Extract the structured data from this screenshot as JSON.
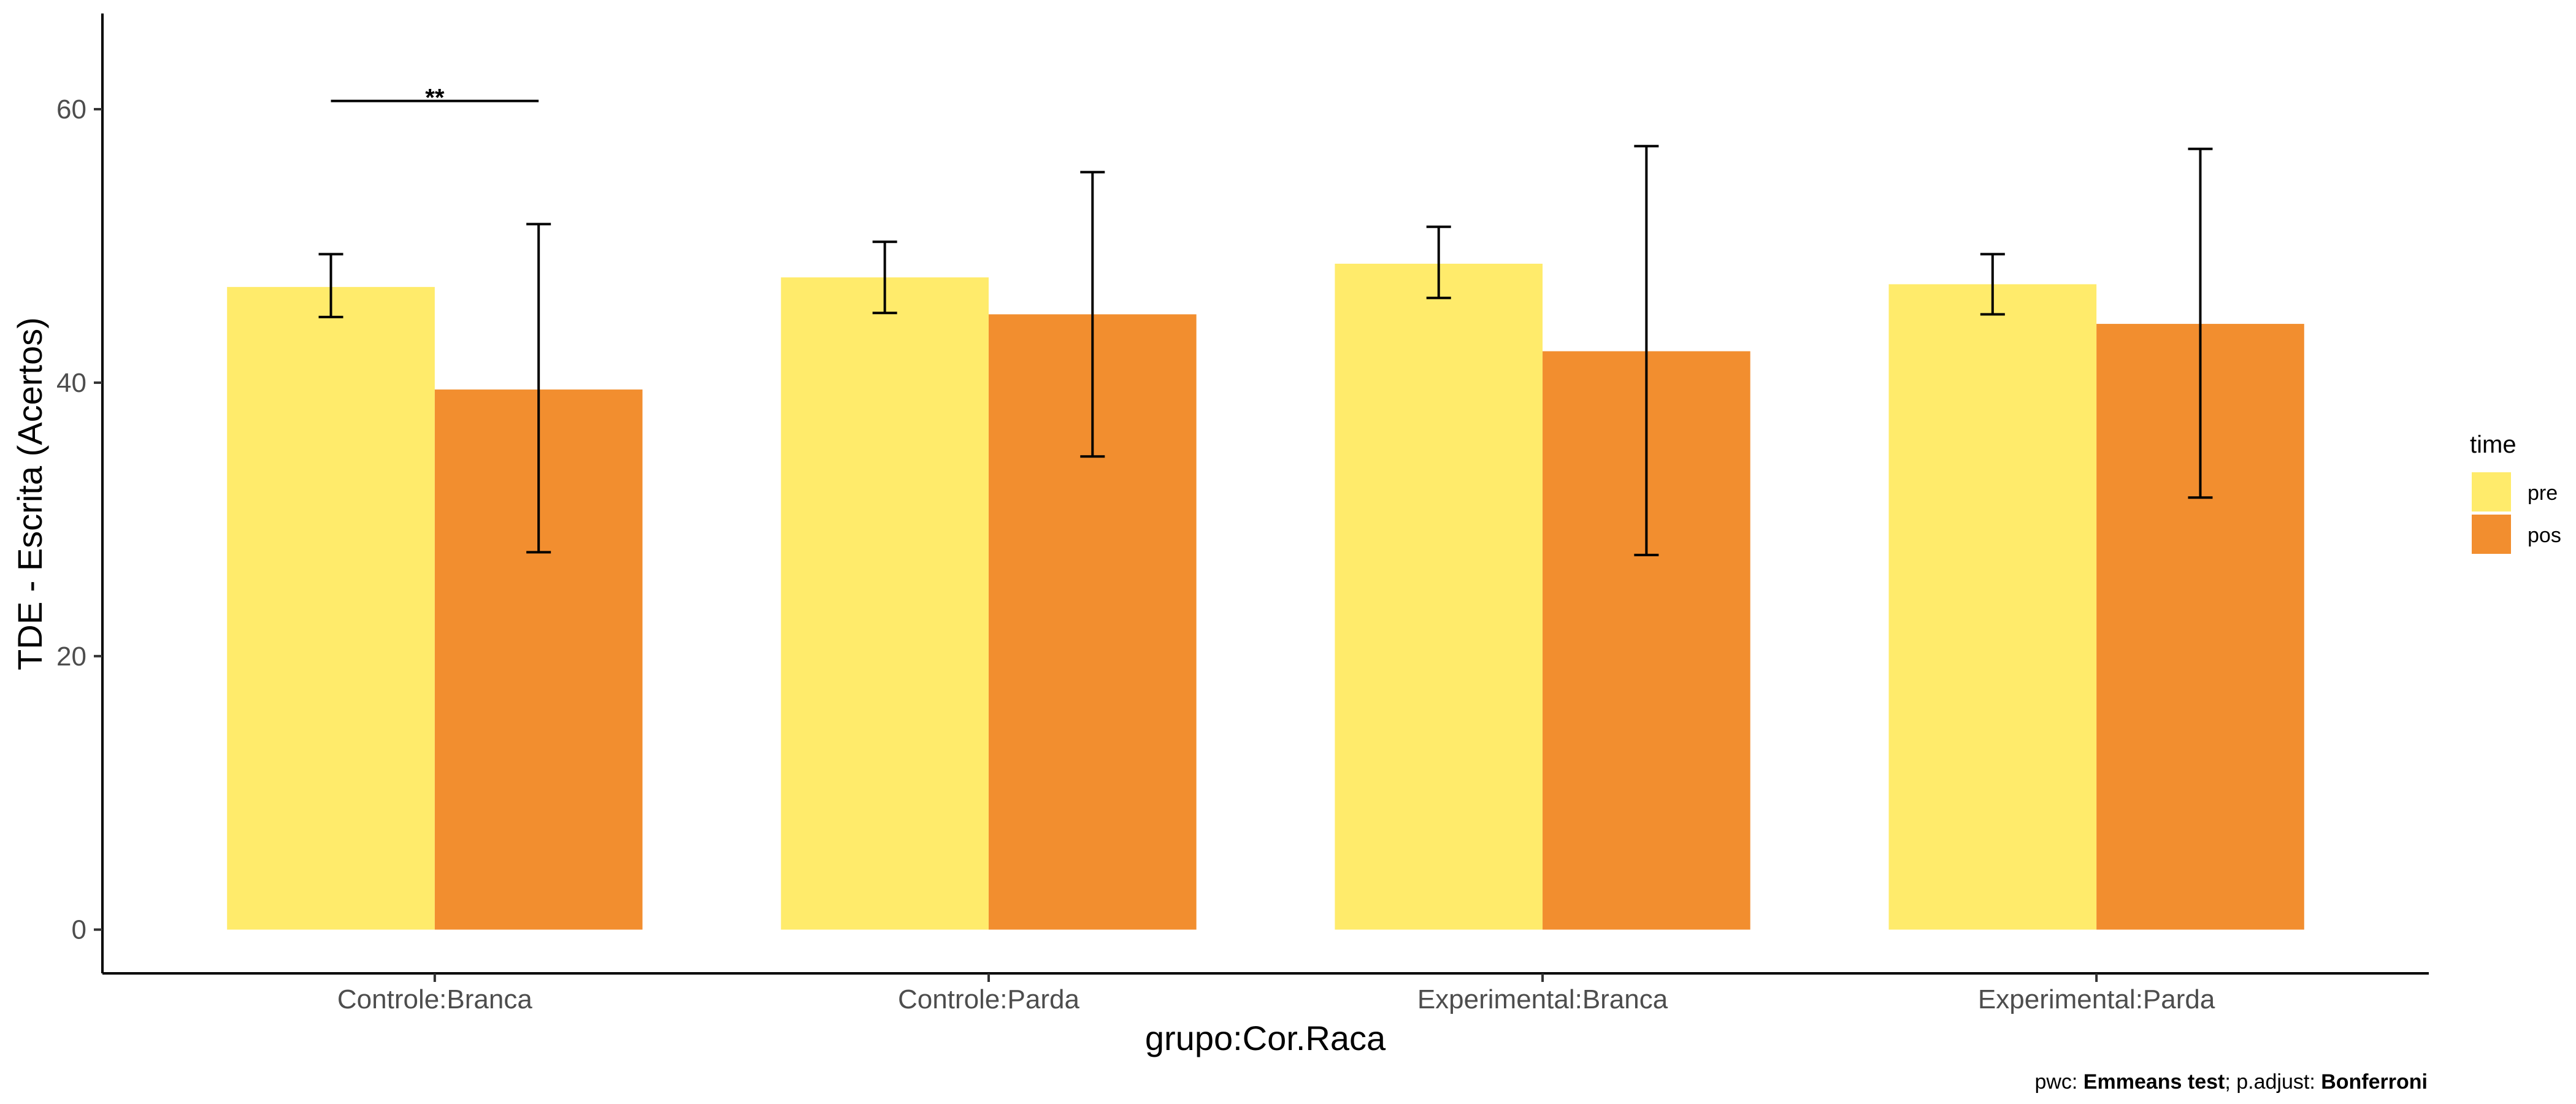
{
  "chart_data": {
    "type": "bar",
    "xlabel": "grupo:Cor.Raca",
    "ylabel": "TDE - Escrita (Acertos)",
    "ylim": [
      -3.2,
      67
    ],
    "yticks": [
      0,
      20,
      40,
      60
    ],
    "grid": false,
    "legend_position": "right",
    "legend_title": "time",
    "categories": [
      "Controle:Branca",
      "Controle:Parda",
      "Experimental:Branca",
      "Experimental:Parda"
    ],
    "series": [
      {
        "name": "pre",
        "color": "#FFEB6B",
        "values": [
          47.0,
          47.7,
          48.7,
          47.2
        ],
        "error_low": [
          44.8,
          45.1,
          46.2,
          45.0
        ],
        "error_high": [
          49.4,
          50.3,
          51.4,
          49.4
        ]
      },
      {
        "name": "pos",
        "color": "#F28E2F",
        "values": [
          39.5,
          45.0,
          42.3,
          44.3
        ],
        "error_low": [
          27.6,
          34.6,
          27.4,
          31.6
        ],
        "error_high": [
          51.6,
          55.4,
          57.3,
          57.1
        ]
      }
    ],
    "annotations": [
      {
        "category_index": 0,
        "label": "**",
        "y": 60.6
      }
    ],
    "caption": {
      "prefix": "pwc: ",
      "method": "Emmeans test",
      "middle": "; p.adjust: ",
      "adjust": "Bonferroni"
    }
  }
}
